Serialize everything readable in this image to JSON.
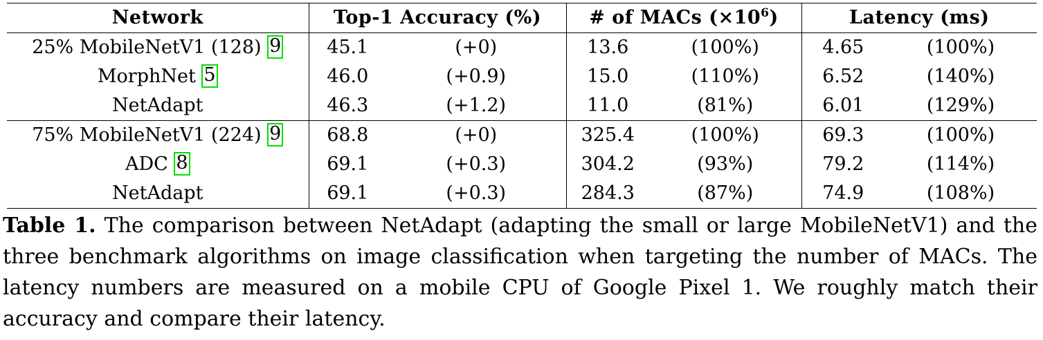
{
  "table": {
    "headers": {
      "network": "Network",
      "accuracy": "Top-1 Accuracy (%)",
      "macs": "# of MACs (×10",
      "macs_exp": "6",
      "macs_close": ")",
      "latency": "Latency (ms)"
    },
    "rows": [
      {
        "network": "25% MobileNetV1 (128)",
        "cite": "9",
        "acc": "45.1",
        "acc_delta": "(+0)",
        "macs": "13.6",
        "macs_pct": "(100%)",
        "lat": "4.65",
        "lat_pct": "(100%)"
      },
      {
        "network": "MorphNet",
        "cite": "5",
        "acc": "46.0",
        "acc_delta": "(+0.9)",
        "macs": "15.0",
        "macs_pct": "(110%)",
        "lat": "6.52",
        "lat_pct": "(140%)"
      },
      {
        "network": "NetAdapt",
        "cite": "",
        "acc": "46.3",
        "acc_delta": "(+1.2)",
        "macs": "11.0",
        "macs_pct": "(81%)",
        "lat": "6.01",
        "lat_pct": "(129%)"
      },
      {
        "network": "75% MobileNetV1 (224)",
        "cite": "9",
        "acc": "68.8",
        "acc_delta": "(+0)",
        "macs": "325.4",
        "macs_pct": "(100%)",
        "lat": "69.3",
        "lat_pct": "(100%)"
      },
      {
        "network": "ADC",
        "cite": "8",
        "acc": "69.1",
        "acc_delta": "(+0.3)",
        "macs": "304.2",
        "macs_pct": "(93%)",
        "lat": "79.2",
        "lat_pct": "(114%)"
      },
      {
        "network": "NetAdapt",
        "cite": "",
        "acc": "69.1",
        "acc_delta": "(+0.3)",
        "macs": "284.3",
        "macs_pct": "(87%)",
        "lat": "74.9",
        "lat_pct": "(108%)"
      }
    ]
  },
  "caption": {
    "label": "Table 1.",
    "text": "The comparison between NetAdapt (adapting the small or large MobileNetV1) and the three benchmark algorithms on image classification when targeting the number of MACs. The latency numbers are measured on a mobile CPU of Google Pixel 1. We roughly match their accuracy and compare their latency."
  },
  "colors": {
    "citation_box": "#00e000",
    "rule": "#000000"
  }
}
